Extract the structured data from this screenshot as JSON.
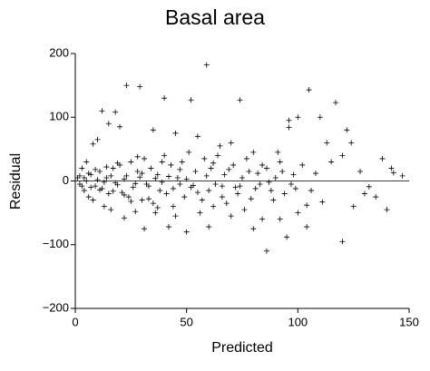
{
  "chart_data": {
    "type": "scatter",
    "title": "Basal area",
    "x_label": "Predicted",
    "y_label": "Residual",
    "xlim": [
      0,
      150
    ],
    "xticks": [
      0,
      50,
      100,
      150
    ],
    "ylim": [
      -200,
      200
    ],
    "yticks": [
      {
        "value": -200,
        "label": "−200"
      },
      {
        "value": -100,
        "label": "−100"
      },
      0,
      100,
      200
    ],
    "hline": 0,
    "color": "#000000",
    "marker": "+",
    "x": [
      59,
      23,
      29,
      40,
      52,
      74,
      105,
      117,
      122,
      100,
      110,
      96,
      96,
      113,
      124,
      138,
      143,
      125,
      130,
      140,
      132,
      104,
      104,
      86,
      120,
      95,
      80,
      60,
      50,
      42,
      31,
      22,
      100,
      111,
      92,
      84,
      76,
      70,
      88,
      92,
      80,
      70,
      65,
      55,
      45,
      35,
      20,
      15,
      12,
      18,
      10,
      8,
      5,
      3,
      1,
      2,
      4,
      6,
      8,
      13,
      16,
      27,
      36,
      45,
      56,
      62,
      66,
      72,
      78,
      84,
      90,
      97,
      108,
      115,
      120,
      128,
      135,
      142,
      147,
      5,
      7,
      9,
      11,
      12,
      14,
      15,
      17,
      18,
      20,
      21,
      23,
      24,
      25,
      26,
      28,
      30,
      31,
      32,
      34,
      35,
      37,
      38,
      40,
      41,
      43,
      44,
      46,
      48,
      49,
      51,
      52,
      54,
      57,
      58,
      60,
      61,
      63,
      64,
      67,
      68,
      71,
      73,
      75,
      77,
      79,
      82,
      83,
      86,
      89,
      91,
      94,
      98,
      102,
      106,
      10,
      13,
      16,
      19,
      22,
      27,
      29,
      33,
      36,
      39,
      42,
      47,
      50,
      53,
      2,
      3,
      4,
      6,
      7,
      9,
      11,
      14,
      17,
      19,
      22,
      25,
      28,
      30,
      33,
      37,
      39,
      44,
      47,
      55,
      59,
      62,
      66,
      69,
      74,
      81,
      87,
      93,
      99
    ],
    "values": [
      182,
      150,
      148,
      130,
      127,
      127,
      143,
      123,
      80,
      100,
      100,
      95,
      84,
      60,
      60,
      35,
      13,
      -40,
      -20,
      -45,
      -9,
      -38,
      -72,
      -110,
      -95,
      -88,
      -75,
      -72,
      -80,
      -72,
      -75,
      -58,
      -50,
      -33,
      -60,
      -60,
      -45,
      -55,
      -15,
      30,
      45,
      60,
      55,
      70,
      75,
      80,
      85,
      90,
      110,
      108,
      65,
      58,
      30,
      20,
      5,
      -5,
      -15,
      -25,
      -30,
      -40,
      -45,
      -48,
      -50,
      -55,
      -50,
      -40,
      -25,
      -10,
      15,
      25,
      5,
      -5,
      12,
      30,
      40,
      15,
      -25,
      20,
      8,
      0,
      10,
      -8,
      15,
      -12,
      5,
      -20,
      20,
      -3,
      25,
      -18,
      8,
      -25,
      30,
      -10,
      15,
      -30,
      35,
      -5,
      20,
      -35,
      10,
      -15,
      40,
      -20,
      25,
      -40,
      5,
      30,
      -25,
      45,
      -10,
      15,
      -30,
      35,
      -15,
      20,
      -5,
      40,
      10,
      -35,
      25,
      -20,
      5,
      35,
      -28,
      12,
      -5,
      20,
      -30,
      45,
      -20,
      10,
      25,
      -15,
      2,
      -2,
      8,
      -6,
      3,
      -4,
      6,
      -8,
      4,
      -2,
      7,
      -5,
      3,
      -7,
      8,
      -8,
      5,
      12,
      -10,
      18,
      -14,
      22,
      -16,
      28,
      -22,
      -32,
      38,
      12,
      -28,
      -42,
      30,
      -12,
      18,
      -18,
      8,
      28,
      -8,
      18,
      -8,
      -12,
      -2,
      15,
      -12
    ]
  }
}
